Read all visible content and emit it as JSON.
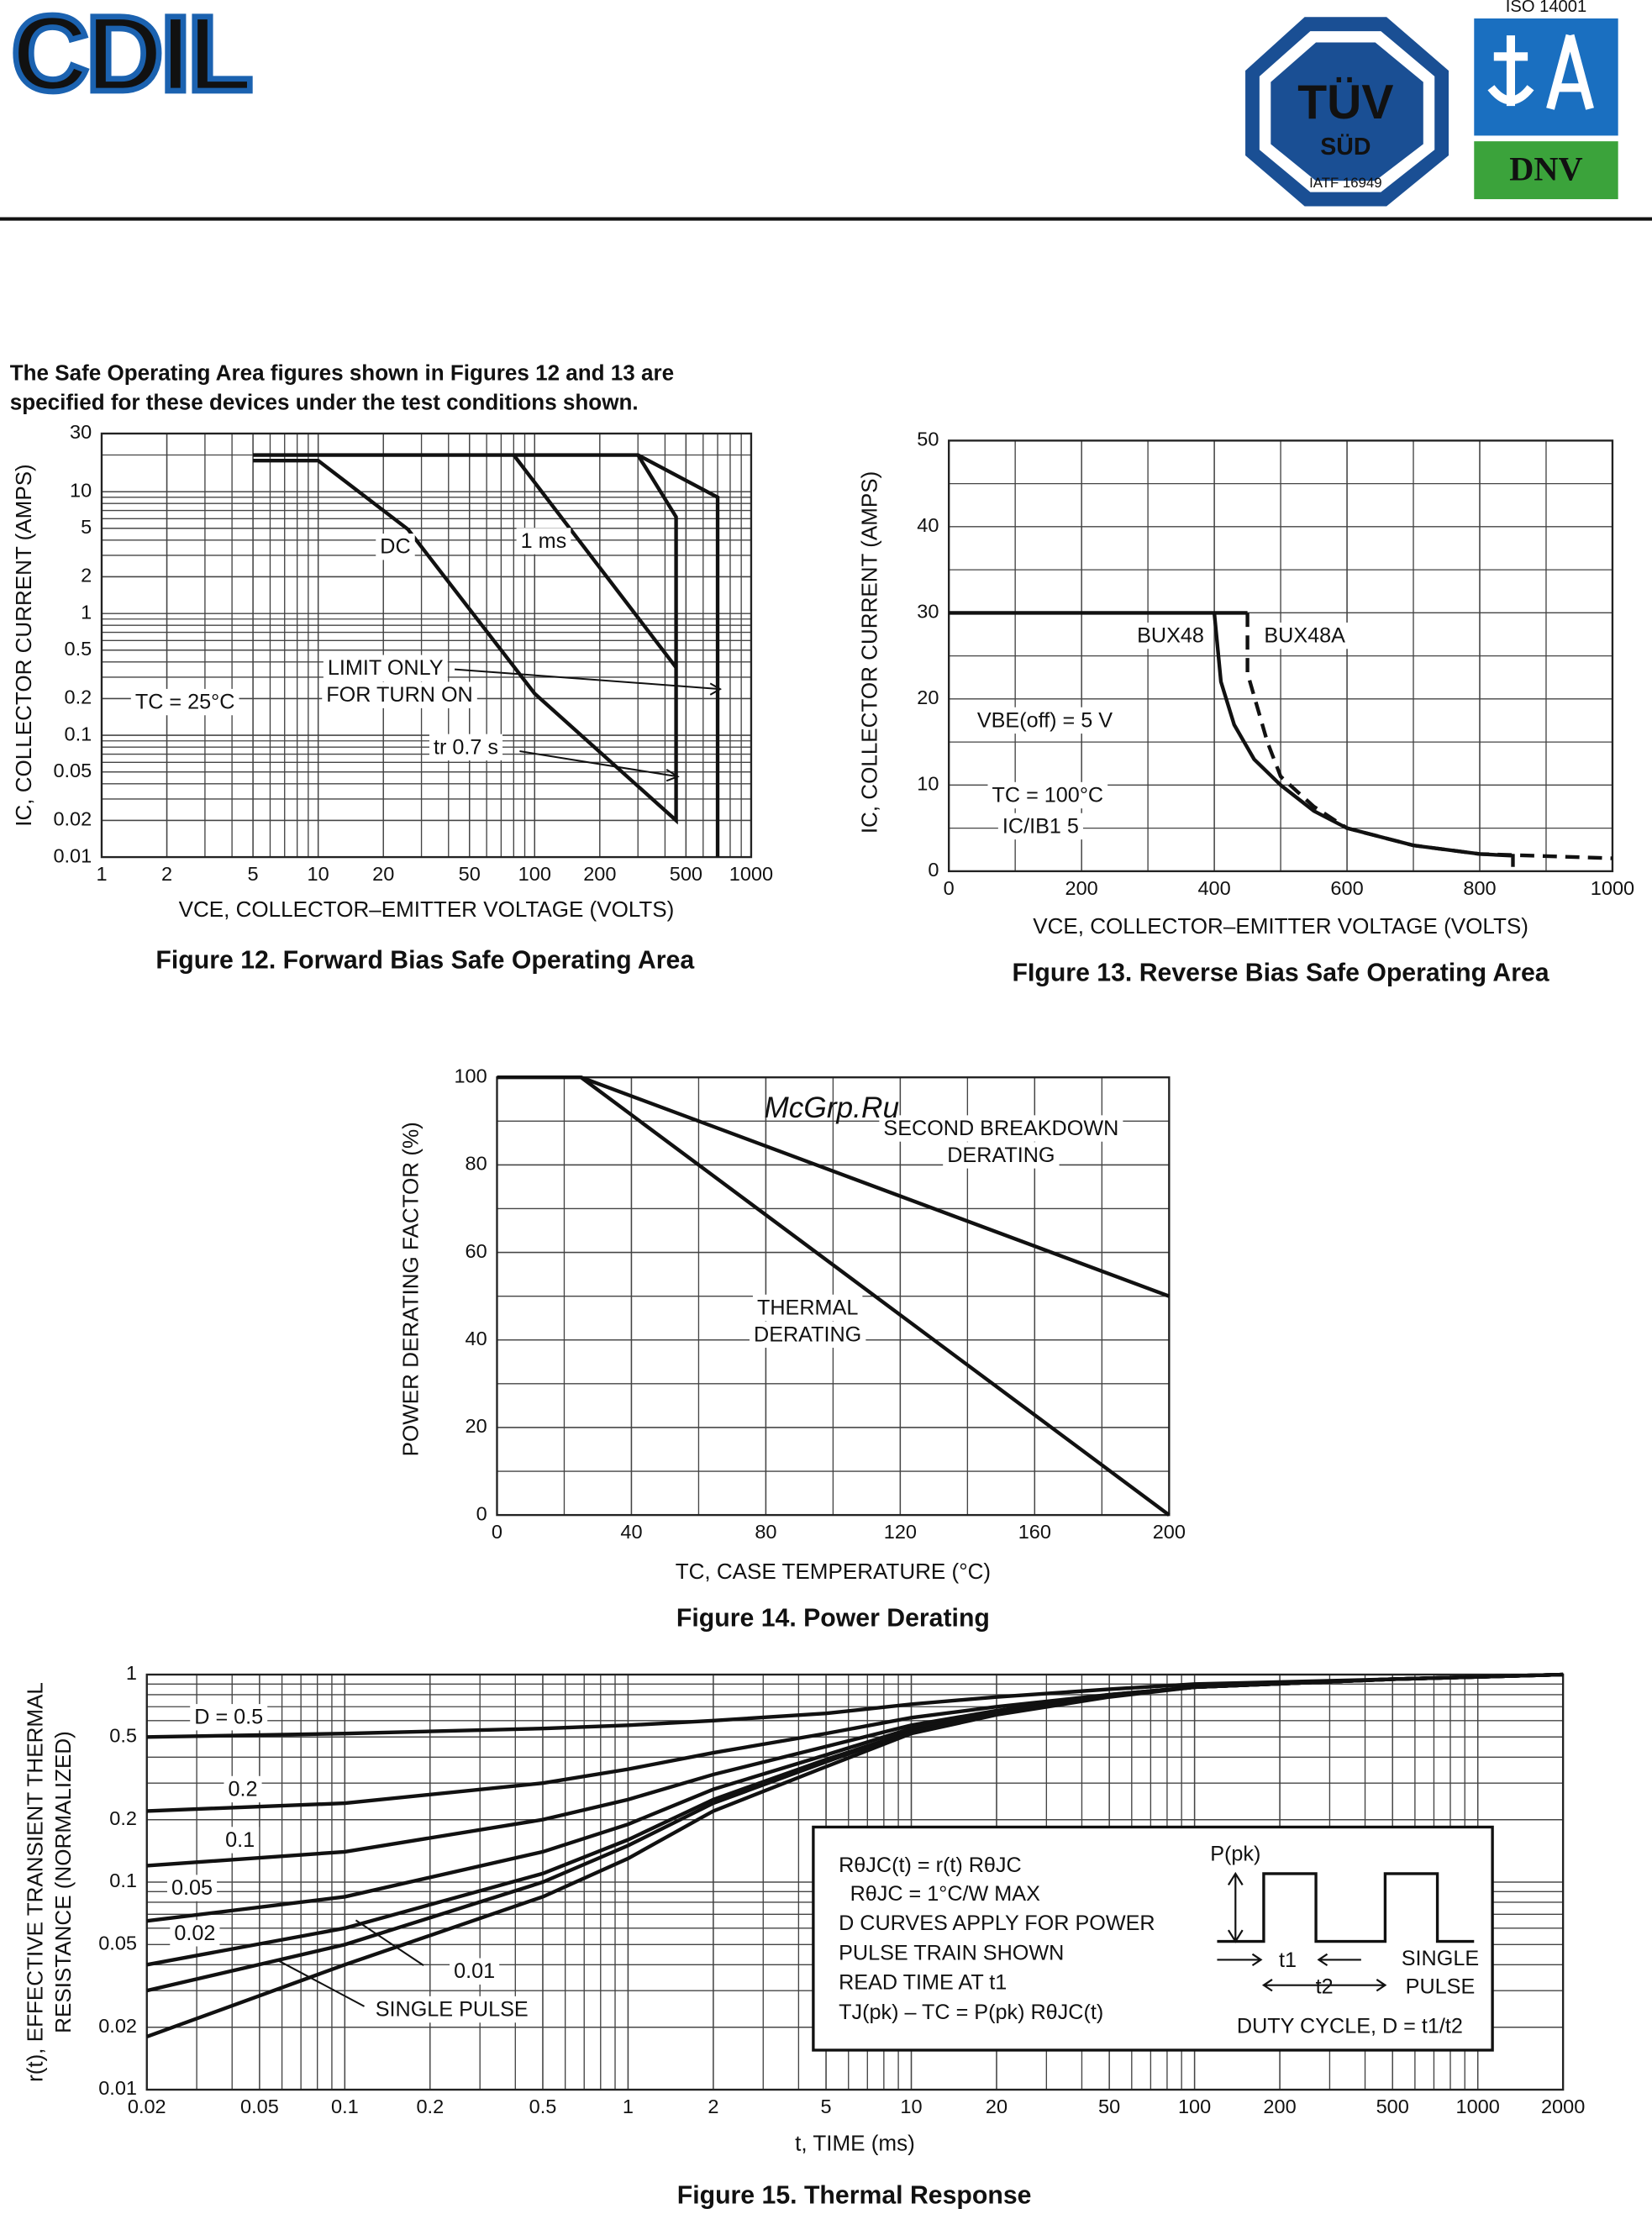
{
  "header": {
    "logo": "CDIL",
    "badge": {
      "top": "TÜV",
      "bottom": "SÜD",
      "cert": "IATF 16949"
    },
    "iso": {
      "title": "ISO 14001",
      "mark": "DNV"
    }
  },
  "intro": [
    "The Safe Operating Area figures shown in Figures 12 and 13 are",
    "specified for these devices under the test conditions shown."
  ],
  "watermark": "McGrp.Ru",
  "chart_data": [
    {
      "type": "line",
      "title": "Figure 12. Forward Bias Safe Operating Area",
      "xlabel": "VCE, COLLECTOR–EMITTER VOLTAGE (VOLTS)",
      "ylabel": [
        "IC, COLLECTOR CURRENT (AMPS)"
      ],
      "xlog": true,
      "ylog": true,
      "grid": true,
      "xlim": [
        1,
        1000
      ],
      "ylim": [
        0.01,
        30
      ],
      "xticks": [
        1,
        2,
        5,
        10,
        20,
        50,
        100,
        200,
        500,
        1000
      ],
      "yticks": [
        0.01,
        0.02,
        0.05,
        0.1,
        0.2,
        0.5,
        1,
        2,
        5,
        10,
        30
      ],
      "series": [
        {
          "color": "#111",
          "x": [
            5,
            300,
            700,
            700
          ],
          "values": [
            20,
            20,
            9,
            0.01
          ]
        },
        {
          "color": "#111",
          "x": [
            5,
            10,
            26,
            100,
            450,
            450,
            300
          ],
          "values": [
            18,
            18,
            4.9,
            0.22,
            0.02,
            6.2,
            20
          ]
        },
        {
          "color": "#111",
          "x": [
            80,
            450
          ],
          "values": [
            20,
            0.36
          ]
        }
      ],
      "annotations": [
        "DC",
        "1 ms",
        "LIMIT ONLY",
        "FOR TURN ON",
        "tr    0.7    s",
        "TC = 25°C"
      ]
    },
    {
      "type": "line",
      "title": "FIgure 13. Reverse Bias Safe Operating Area",
      "xlabel": "VCE, COLLECTOR–EMITTER VOLTAGE (VOLTS)",
      "ylabel": [
        "IC, COLLECTOR CURRENT (AMPS)"
      ],
      "xlog": false,
      "ylog": false,
      "grid": true,
      "xgrid_step": 100,
      "ygrid_step": 5,
      "xlim": [
        0,
        1000
      ],
      "ylim": [
        0,
        50
      ],
      "xticks": [
        0,
        200,
        400,
        600,
        800,
        1000
      ],
      "yticks": [
        0,
        10,
        20,
        30,
        40,
        50
      ],
      "series": [
        {
          "name": "BUX48",
          "color": "#111",
          "dash": false,
          "x": [
            0,
            450,
            400,
            400,
            410,
            430,
            460,
            500,
            550,
            600,
            700,
            800,
            850,
            850
          ],
          "values": [
            30,
            30,
            30,
            30,
            22,
            17,
            13,
            10,
            7,
            5,
            3,
            2,
            1.8,
            0.5
          ]
        },
        {
          "name": "BUX48A",
          "color": "#111",
          "dash": true,
          "x": [
            450,
            450,
            480,
            500,
            550,
            600,
            700,
            800,
            1000
          ],
          "values": [
            30,
            23,
            15,
            11,
            7.5,
            5,
            3,
            2,
            1.5
          ]
        }
      ],
      "annotations": [
        "BUX48",
        "BUX48A",
        "VBE(off) = 5 V",
        "TC = 100°C",
        "IC/IB1     5"
      ]
    },
    {
      "type": "line",
      "title": "Figure 14. Power Derating",
      "xlabel": "TC, CASE TEMPERATURE (°C)",
      "ylabel": [
        "POWER DERATING FACTOR (%)"
      ],
      "xlog": false,
      "ylog": false,
      "grid": true,
      "xgrid_step": 20,
      "ygrid_step": 10,
      "xlim": [
        0,
        200
      ],
      "ylim": [
        0,
        100
      ],
      "xticks": [
        0,
        40,
        80,
        120,
        160,
        200
      ],
      "yticks": [
        0,
        20,
        40,
        60,
        80,
        100
      ],
      "series": [
        {
          "color": "#111",
          "x": [
            0,
            25,
            200
          ],
          "values": [
            100,
            100,
            0
          ]
        },
        {
          "color": "#111",
          "x": [
            25,
            200
          ],
          "values": [
            100,
            50
          ]
        }
      ],
      "annotations": [
        "SECOND BREAKDOWN",
        "DERATING",
        "THERMAL",
        "DERATING"
      ]
    },
    {
      "type": "line",
      "title": "Figure 15. Thermal Response",
      "xlabel": "t, TIME (ms)",
      "ylabel": [
        "r(t), EFFECTIVE TRANSIENT THERMAL",
        "RESISTANCE (NORMALIZED)"
      ],
      "xlog": true,
      "ylog": true,
      "grid": true,
      "xlim": [
        0.02,
        2000
      ],
      "ylim": [
        0.01,
        1
      ],
      "xticks": [
        0.02,
        0.05,
        0.1,
        0.2,
        0.5,
        1,
        2,
        5,
        10,
        20,
        50,
        100,
        200,
        500,
        1000,
        2000
      ],
      "yticks": [
        0.01,
        0.02,
        0.05,
        0.1,
        0.2,
        0.5,
        1
      ],
      "x": [
        0.02,
        0.1,
        0.5,
        1,
        2,
        5,
        10,
        20,
        50,
        100,
        500,
        2000
      ],
      "series": [
        {
          "name": "D = 0.5",
          "color": "#111",
          "values": [
            0.5,
            0.52,
            0.55,
            0.57,
            0.6,
            0.65,
            0.72,
            0.78,
            0.85,
            0.9,
            0.95,
            1
          ]
        },
        {
          "name": "0.2",
          "color": "#111",
          "values": [
            0.22,
            0.24,
            0.3,
            0.35,
            0.42,
            0.52,
            0.62,
            0.7,
            0.8,
            0.87,
            0.95,
            1
          ]
        },
        {
          "name": "0.1",
          "color": "#111",
          "values": [
            0.12,
            0.14,
            0.2,
            0.25,
            0.33,
            0.45,
            0.57,
            0.67,
            0.8,
            0.87,
            0.95,
            1
          ]
        },
        {
          "name": "0.05",
          "color": "#111",
          "values": [
            0.065,
            0.085,
            0.14,
            0.19,
            0.28,
            0.41,
            0.55,
            0.66,
            0.79,
            0.87,
            0.95,
            1
          ]
        },
        {
          "name": "0.02",
          "color": "#111",
          "values": [
            0.04,
            0.06,
            0.11,
            0.16,
            0.25,
            0.39,
            0.53,
            0.65,
            0.79,
            0.87,
            0.95,
            1
          ]
        },
        {
          "name": "0.01",
          "color": "#111",
          "values": [
            0.03,
            0.05,
            0.1,
            0.15,
            0.24,
            0.38,
            0.53,
            0.65,
            0.79,
            0.87,
            0.95,
            1
          ]
        },
        {
          "name": "SINGLE PULSE",
          "color": "#111",
          "values": [
            0.018,
            0.04,
            0.085,
            0.13,
            0.22,
            0.36,
            0.52,
            0.64,
            0.78,
            0.87,
            0.95,
            1
          ]
        }
      ],
      "annotations": [
        "RθJC(t) = r(t) RθJC",
        "RθJC = 1°C/W MAX",
        "D CURVES APPLY FOR POWER",
        "PULSE TRAIN SHOWN",
        "READ TIME AT t1",
        "TJ(pk) – TC = P(pk) RθJC(t)",
        "P(pk)",
        "t1",
        "t2",
        "SINGLE",
        "PULSE",
        "DUTY CYCLE, D = t1/t2"
      ]
    }
  ]
}
